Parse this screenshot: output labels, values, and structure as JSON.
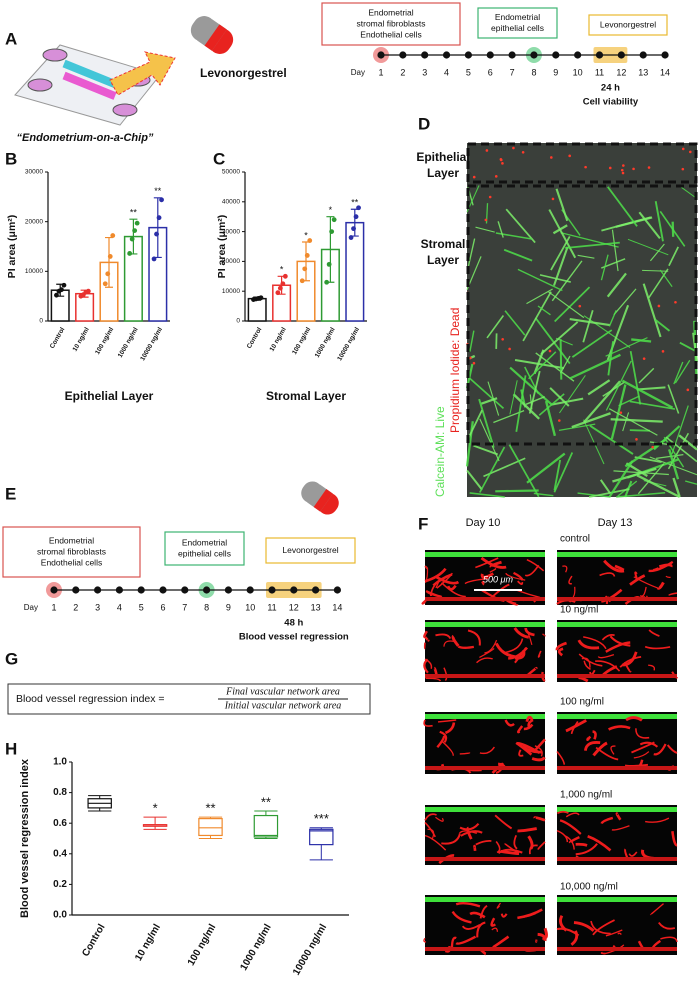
{
  "panel_labels": [
    "A",
    "B",
    "C",
    "D",
    "E",
    "F",
    "G",
    "H"
  ],
  "panel_a": {
    "drug": "Levonorgestrel",
    "chip_caption": "“Endometrium-on-a-Chip”"
  },
  "timeline_a": {
    "boxes": [
      [
        "Endometrial",
        "stromal fibroblasts",
        "Endothelial cells"
      ],
      [
        "Endometrial",
        "epithelial cells"
      ],
      [
        "Levonorgestrel"
      ]
    ],
    "day_label": "Day",
    "days": [
      1,
      2,
      3,
      4,
      5,
      6,
      7,
      8,
      9,
      10,
      11,
      12,
      13,
      14
    ],
    "seeding_days": [
      1,
      8
    ],
    "treatment": [
      11,
      12
    ],
    "duration": "24 h",
    "readout": "Cell viability"
  },
  "timeline_e": {
    "boxes": [
      [
        "Endometrial",
        "stromal fibroblasts",
        "Endothelial cells"
      ],
      [
        "Endometrial",
        "epithelial cells"
      ],
      [
        "Levonorgestrel"
      ]
    ],
    "day_label": "Day",
    "days": [
      1,
      2,
      3,
      4,
      5,
      6,
      7,
      8,
      9,
      10,
      11,
      12,
      13,
      14
    ],
    "seeding_days": [
      1,
      8
    ],
    "treatment": [
      11,
      13
    ],
    "duration": "48 h",
    "readout": "Blood vessel regression"
  },
  "panel_d": {
    "epithelial": [
      "Epithelial",
      "Layer"
    ],
    "stromal": [
      "Stromal",
      "Layer"
    ],
    "live_stain": "Calcein-AM: Live",
    "dead_stain": "Propidium Iodide: Dead"
  },
  "panel_f": {
    "columns": [
      "Day 10",
      "Day 13"
    ],
    "rows": [
      "control",
      "10 ng/ml",
      "100 ng/ml",
      "1,000 ng/ml",
      "10,000 ng/ml"
    ],
    "scale_bar": "500 μm"
  },
  "panel_g": {
    "lhs": "Blood vessel regression index =",
    "numerator": "Final vascular network area",
    "denominator": "Initial vascular network area"
  },
  "chart_data": [
    {
      "type": "bar",
      "title": "Epithelial Layer",
      "y_label": "PI area (μm²)",
      "categories": [
        "Control",
        "10 ng/ml",
        "100 ng/ml",
        "1000 ng/ml",
        "10000 ng/ml"
      ],
      "values": [
        6200,
        5500,
        11800,
        17000,
        18800
      ],
      "errors": [
        1200,
        700,
        5000,
        3500,
        6000
      ],
      "points": [
        [
          5200,
          6000,
          6300,
          7200
        ],
        [
          5000,
          5300,
          5800,
          6000
        ],
        [
          7500,
          9500,
          13000,
          17200
        ],
        [
          13600,
          16500,
          18200,
          19700
        ],
        [
          12500,
          17500,
          20800,
          24400
        ]
      ],
      "colors": [
        "#111111",
        "#e8312f",
        "#f08a2c",
        "#2e9a33",
        "#2b2fa8"
      ],
      "annotations": [
        null,
        null,
        null,
        "**",
        "**"
      ],
      "ylim": [
        0,
        30000
      ],
      "yticks": [
        0,
        10000,
        20000,
        30000
      ]
    },
    {
      "type": "bar",
      "title": "Stromal Layer",
      "y_label": "PI area (μm²)",
      "categories": [
        "Control",
        "10 ng/ml",
        "100 ng/ml",
        "1000 ng/ml",
        "10000 ng/ml"
      ],
      "values": [
        7500,
        12000,
        20000,
        24000,
        33000
      ],
      "errors": [
        500,
        3000,
        6500,
        11000,
        4500
      ],
      "points": [
        [
          7200,
          7400,
          7600,
          7800
        ],
        [
          9500,
          11000,
          12500,
          15000
        ],
        [
          13500,
          17500,
          22000,
          27000
        ],
        [
          13000,
          19000,
          30000,
          34000
        ],
        [
          28000,
          31000,
          35000,
          38000
        ]
      ],
      "colors": [
        "#111111",
        "#e8312f",
        "#f08a2c",
        "#2e9a33",
        "#2b2fa8"
      ],
      "annotations": [
        null,
        "*",
        "*",
        "*",
        "**"
      ],
      "ylim": [
        0,
        50000
      ],
      "yticks": [
        0,
        10000,
        20000,
        30000,
        40000,
        50000
      ]
    },
    {
      "type": "box",
      "y_label": "Blood vessel regression index",
      "categories": [
        "Control",
        "10 ng/ml",
        "100 ng/ml",
        "1000 ng/ml",
        "10000 ng/ml"
      ],
      "min": [
        0.68,
        0.56,
        0.5,
        0.5,
        0.36
      ],
      "q1": [
        0.7,
        0.58,
        0.52,
        0.51,
        0.46
      ],
      "median": [
        0.73,
        0.59,
        0.57,
        0.52,
        0.55
      ],
      "q3": [
        0.76,
        0.59,
        0.63,
        0.65,
        0.56
      ],
      "max": [
        0.78,
        0.64,
        0.64,
        0.68,
        0.57
      ],
      "colors": [
        "#111111",
        "#e8312f",
        "#f08a2c",
        "#2e9a33",
        "#2b2fa8"
      ],
      "annotations": [
        null,
        "*",
        "**",
        "**",
        "***"
      ],
      "ylim": [
        0,
        1
      ],
      "yticks": [
        {
          "value": 0,
          "label": "0.0"
        },
        {
          "value": 0.2,
          "label": "0.2"
        },
        {
          "value": 0.4,
          "label": "0.4"
        },
        {
          "value": 0.6,
          "label": "0.6"
        },
        {
          "value": 0.8,
          "label": "0.8"
        },
        {
          "value": 1,
          "label": "1.0"
        }
      ]
    }
  ]
}
